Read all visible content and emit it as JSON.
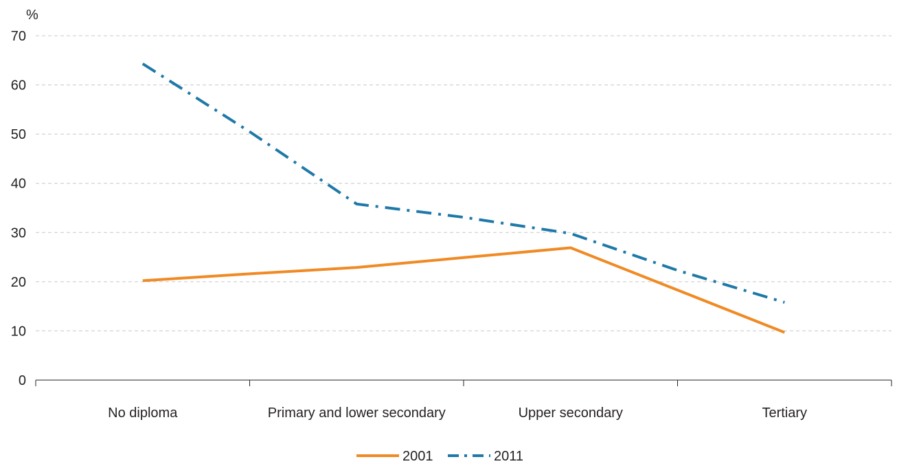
{
  "chart_data": {
    "type": "line",
    "y_unit": "%",
    "categories": [
      "No diploma",
      "Primary and lower secondary",
      "Upper secondary",
      "Tertiary"
    ],
    "ylim": [
      0,
      70
    ],
    "yticks": [
      0,
      10,
      20,
      30,
      40,
      50,
      60,
      70
    ],
    "grid": true,
    "legend_position": "bottom",
    "series": [
      {
        "name": "2001",
        "x": [
          0,
          0.5,
          1,
          1.5,
          2,
          3
        ],
        "values": [
          20.2,
          21.6,
          22.9,
          24.9,
          26.9,
          9.7
        ],
        "color": "#f08a24",
        "style": "solid"
      },
      {
        "name": "2011",
        "x": [
          0,
          0.5,
          1,
          1.5,
          2,
          2.5,
          3
        ],
        "values": [
          64.3,
          50.5,
          35.8,
          33.1,
          29.8,
          22.3,
          15.8
        ],
        "color": "#1f79a8",
        "style": "dashdot"
      }
    ]
  }
}
